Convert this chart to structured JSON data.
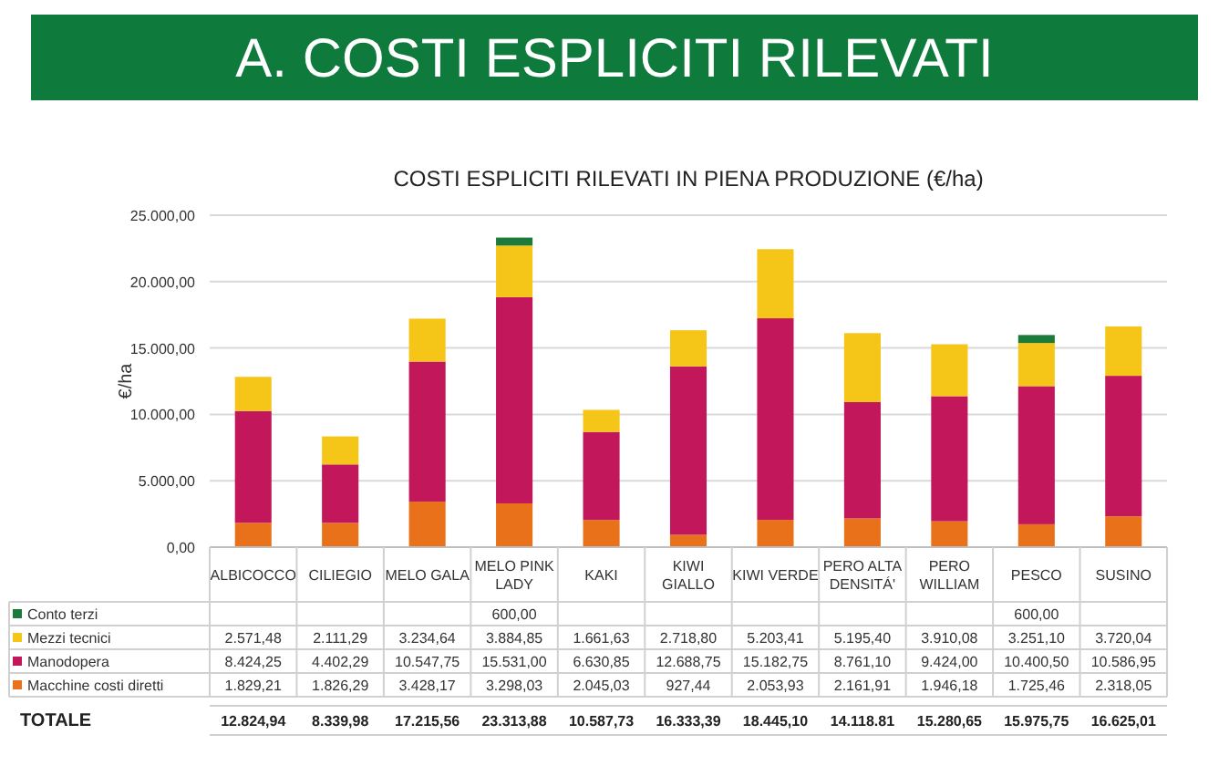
{
  "chart_data": {
    "type": "bar",
    "stacked": true,
    "title": "A. COSTI ESPLICITI RILEVATI",
    "subtitle": "COSTI ESPLICITI RILEVATI IN PIENA PRODUZIONE (€/ha)",
    "ylabel": "€/ha",
    "categories": [
      "ALBICOCCO",
      "CILIEGIO",
      "MELO GALA",
      "MELO PINK LADY",
      "KAKI",
      "KIWI GIALLO",
      "KIWI VERDE",
      "PERO ALTA DENSITÁ'",
      "PERO WILLIAM",
      "PESCO",
      "SUSINO"
    ],
    "series": [
      {
        "name": "Macchine costi diretti",
        "color": "#e8711a",
        "values": [
          1829.21,
          1826.29,
          3428.17,
          3298.03,
          2045.03,
          927.44,
          2053.93,
          2161.91,
          1946.18,
          1725.46,
          2318.05
        ],
        "value_labels": [
          "1.829,21",
          "1.826,29",
          "3.428,17",
          "3.298,03",
          "2.045,03",
          "927,44",
          "2.053,93",
          "2.161,91",
          "1.946,18",
          "1.725,46",
          "2.318,05"
        ]
      },
      {
        "name": "Manodopera",
        "color": "#c2185b",
        "values": [
          8424.25,
          4402.29,
          10547.75,
          15531.0,
          6630.85,
          12688.75,
          15182.75,
          8761.1,
          9424.0,
          10400.5,
          10586.95
        ],
        "value_labels": [
          "8.424,25",
          "4.402,29",
          "10.547,75",
          "15.531,00",
          "6.630,85",
          "12.688,75",
          "15.182,75",
          "8.761,10",
          "9.424,00",
          "10.400,50",
          "10.586,95"
        ]
      },
      {
        "name": "Mezzi tecnici",
        "color": "#f5c518",
        "values": [
          2571.48,
          2111.29,
          3234.64,
          3884.85,
          1661.63,
          2718.8,
          5203.41,
          5195.4,
          3910.08,
          3251.1,
          3720.04
        ],
        "value_labels": [
          "2.571,48",
          "2.111,29",
          "3.234,64",
          "3.884,85",
          "1.661,63",
          "2.718,80",
          "5.203,41",
          "5.195,40",
          "3.910,08",
          "3.251,10",
          "3.720,04"
        ]
      },
      {
        "name": "Conto terzi",
        "color": "#1e7a3a",
        "values": [
          null,
          null,
          null,
          600,
          null,
          null,
          null,
          null,
          null,
          600,
          null
        ],
        "value_labels": [
          null,
          null,
          null,
          "600,00",
          null,
          null,
          null,
          null,
          null,
          "600,00",
          null
        ]
      }
    ],
    "annotations": [
      "TOTALE",
      "12.824,94",
      "8.339,98",
      "17.215,56",
      "23.313,88",
      "10.587,73",
      "16.333,39",
      "18.445,10",
      "14.118.81",
      "15.280,65",
      "15.975,75",
      "16.625,01"
    ],
    "ylim": [
      0,
      25000
    ],
    "yticks": [
      {
        "value": 0,
        "label": "0,00"
      },
      {
        "value": 5000,
        "label": "5.000,00"
      },
      {
        "value": 10000,
        "label": "10.000,00"
      },
      {
        "value": 15000,
        "label": "15.000,00"
      },
      {
        "value": 20000,
        "label": "20.000,00"
      },
      {
        "value": 25000,
        "label": "25.000,00"
      }
    ],
    "grid": "y",
    "legend": "bottom"
  }
}
